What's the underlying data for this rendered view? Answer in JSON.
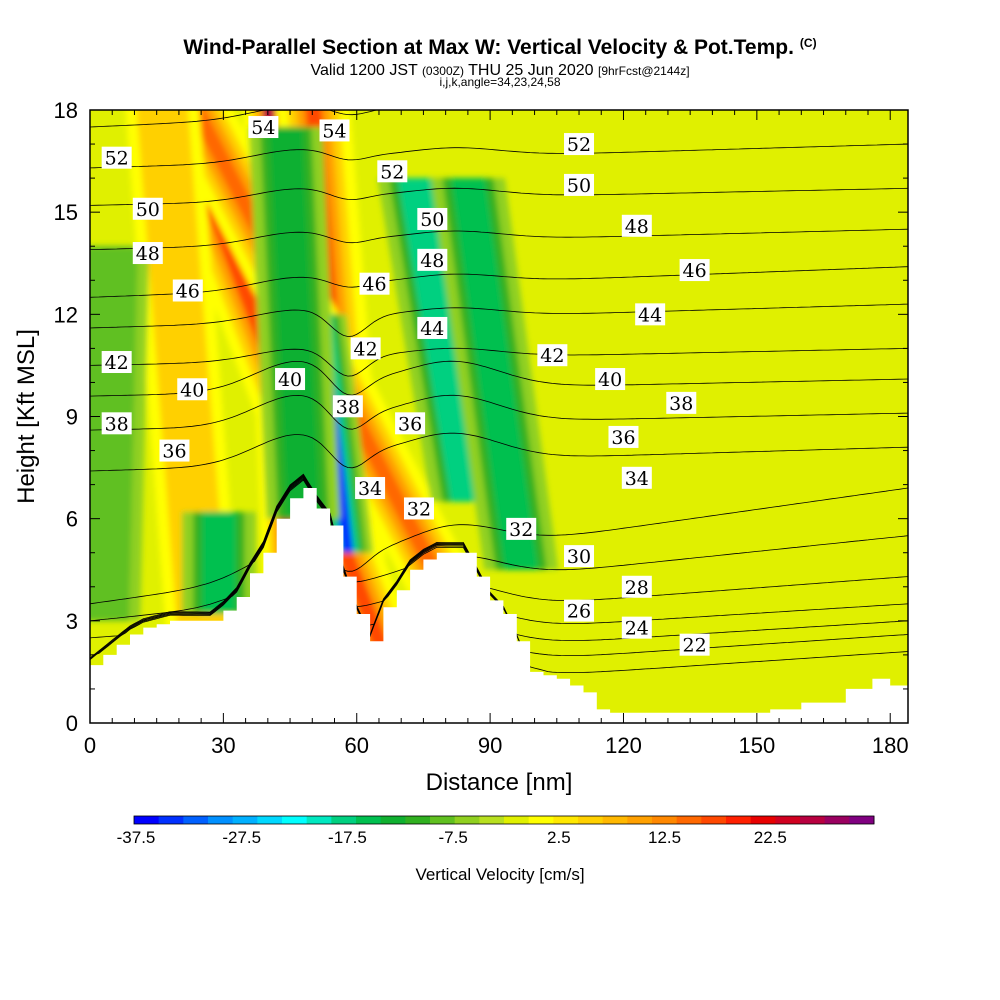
{
  "header": {
    "title": "Wind-Parallel Section at Max W: Vertical Velocity & Pot.Temp.",
    "title_mark": "(C)",
    "valid_prefix": "Valid 1200 JST",
    "valid_utc": "(0300Z)",
    "valid_date": "THU 25 Jun 2020",
    "forecast_info": "[9hrFcst@2144z]",
    "indices": "i,j,k,angle=34,23,24,58"
  },
  "chart_data": {
    "type": "heatmap",
    "xlabel": "Distance [nm]",
    "ylabel": "Height [Kft MSL]",
    "xlim": [
      0,
      184
    ],
    "ylim": [
      0,
      18
    ],
    "x_ticks": [
      0,
      30,
      60,
      90,
      120,
      150,
      180
    ],
    "y_ticks": [
      0,
      3,
      6,
      9,
      12,
      15,
      18
    ],
    "terrain": {
      "x": [
        0,
        3,
        6,
        9,
        12,
        15,
        18,
        21,
        24,
        27,
        30,
        33,
        36,
        39,
        42,
        45,
        48,
        51,
        54,
        57,
        60,
        63,
        66,
        69,
        72,
        75,
        78,
        81,
        84,
        87,
        90,
        93,
        96,
        99,
        102,
        105,
        108,
        111,
        114,
        117,
        120,
        135,
        150,
        153,
        160,
        170,
        176,
        180,
        184
      ],
      "height": [
        1.7,
        2.0,
        2.3,
        2.6,
        2.8,
        2.9,
        3.0,
        3.0,
        3.0,
        3.0,
        3.3,
        3.7,
        4.4,
        5.0,
        6.0,
        6.6,
        6.9,
        6.3,
        5.8,
        4.3,
        3.2,
        2.4,
        3.4,
        3.9,
        4.5,
        4.8,
        5.0,
        5.0,
        5.0,
        4.3,
        3.6,
        3.2,
        2.4,
        1.5,
        1.4,
        1.3,
        1.1,
        0.9,
        0.4,
        0.3,
        0.3,
        0.3,
        0.3,
        0.4,
        0.6,
        1.0,
        1.3,
        1.1,
        1.0
      ]
    },
    "updraft_bands": [
      {
        "x0": 46,
        "x1": 74,
        "xtop": 40,
        "w": 30
      },
      {
        "x0": 61,
        "x1": 74,
        "xtop": 50,
        "w": 20
      },
      {
        "x0": 72,
        "x1": 84,
        "xtop": 18,
        "w": 22
      },
      {
        "x0": 95,
        "x1": 98,
        "xtop": 22,
        "w": 18
      },
      {
        "x0": 27,
        "x1": 30,
        "xtop": 16,
        "w": 8
      }
    ],
    "downdraft_bands": [
      {
        "x0": 58,
        "x1": 52,
        "y0": 5.0,
        "y1": 12.0,
        "w": -35
      },
      {
        "x0": 85,
        "x1": 73,
        "y0": 6.5,
        "y1": 16.0,
        "w": -17
      },
      {
        "x0": 97,
        "x1": 85,
        "y0": 4.5,
        "y1": 16.0,
        "w": -14
      },
      {
        "x0": 48,
        "x1": 44,
        "y0": 6.0,
        "y1": 17.5,
        "w": -12
      },
      {
        "x0": 29,
        "x1": 29,
        "y0": 3.2,
        "y1": 6.2,
        "w": -14
      },
      {
        "x0": 3,
        "x1": 5,
        "y0": 3.0,
        "y1": 14.0,
        "w": -6
      }
    ],
    "theta_contours": [
      {
        "value": 22,
        "left_height": 0.5,
        "right_height": 2.1,
        "labels": [
          {
            "x": 136,
            "y": 2.3
          }
        ]
      },
      {
        "value": 24,
        "left_height": 1.0,
        "right_height": 2.6,
        "labels": [
          {
            "x": 123,
            "y": 2.8
          }
        ]
      },
      {
        "value": 26,
        "left_height": 1.5,
        "right_height": 3.0,
        "labels": [
          {
            "x": 110,
            "y": 3.3
          }
        ]
      },
      {
        "value": 28,
        "left_height": 2.0,
        "right_height": 3.5,
        "labels": [
          {
            "x": 123,
            "y": 4.0
          }
        ]
      },
      {
        "value": 30,
        "left_height": 2.5,
        "right_height": 4.3,
        "labels": [
          {
            "x": 110,
            "y": 4.9
          }
        ]
      },
      {
        "value": 32,
        "left_height": 3.0,
        "right_height": 5.5,
        "labels": [
          {
            "x": 74,
            "y": 6.3
          },
          {
            "x": 97,
            "y": 5.7
          }
        ]
      },
      {
        "value": 34,
        "left_height": 3.5,
        "right_height": 6.9,
        "labels": [
          {
            "x": 63,
            "y": 6.9
          },
          {
            "x": 123,
            "y": 7.2
          }
        ]
      },
      {
        "value": 36,
        "left_height": 7.4,
        "right_height": 8.1,
        "labels": [
          {
            "x": 19,
            "y": 8.0
          },
          {
            "x": 72,
            "y": 8.8
          },
          {
            "x": 120,
            "y": 8.4
          }
        ]
      },
      {
        "value": 38,
        "left_height": 8.6,
        "right_height": 9.1,
        "labels": [
          {
            "x": 6,
            "y": 8.8
          },
          {
            "x": 58,
            "y": 9.3
          },
          {
            "x": 133,
            "y": 9.4
          }
        ]
      },
      {
        "value": 40,
        "left_height": 9.6,
        "right_height": 10.1,
        "labels": [
          {
            "x": 23,
            "y": 9.8
          },
          {
            "x": 45,
            "y": 10.1
          },
          {
            "x": 117,
            "y": 10.1
          }
        ]
      },
      {
        "value": 42,
        "left_height": 10.5,
        "right_height": 11.0,
        "labels": [
          {
            "x": 6,
            "y": 10.6
          },
          {
            "x": 62,
            "y": 11.0
          },
          {
            "x": 104,
            "y": 10.8
          }
        ]
      },
      {
        "value": 44,
        "left_height": 11.6,
        "right_height": 12.3,
        "labels": [
          {
            "x": 77,
            "y": 11.6
          },
          {
            "x": 126,
            "y": 12.0
          }
        ]
      },
      {
        "value": 46,
        "left_height": 12.5,
        "right_height": 13.4,
        "labels": [
          {
            "x": 22,
            "y": 12.7
          },
          {
            "x": 64,
            "y": 12.9
          },
          {
            "x": 136,
            "y": 13.3
          }
        ]
      },
      {
        "value": 48,
        "left_height": 13.9,
        "right_height": 14.5,
        "labels": [
          {
            "x": 13,
            "y": 13.8
          },
          {
            "x": 77,
            "y": 13.6
          },
          {
            "x": 123,
            "y": 14.6
          }
        ]
      },
      {
        "value": 50,
        "left_height": 15.2,
        "right_height": 15.7,
        "labels": [
          {
            "x": 13,
            "y": 15.1
          },
          {
            "x": 77,
            "y": 14.8
          },
          {
            "x": 110,
            "y": 15.8
          }
        ]
      },
      {
        "value": 52,
        "left_height": 16.3,
        "right_height": 17.0,
        "labels": [
          {
            "x": 6,
            "y": 16.6
          },
          {
            "x": 68,
            "y": 16.2
          },
          {
            "x": 110,
            "y": 17.0
          }
        ]
      },
      {
        "value": 54,
        "left_height": 17.5,
        "right_height": 18.6,
        "labels": [
          {
            "x": 39,
            "y": 17.5
          },
          {
            "x": 55,
            "y": 17.4
          }
        ]
      }
    ],
    "colorbar": {
      "title": "Vertical Velocity [cm/s]",
      "tick_labels": [
        "-37.5",
        "-27.5",
        "-17.5",
        "-7.5",
        "2.5",
        "12.5",
        "22.5"
      ],
      "levels": [
        -37.5,
        32.5
      ],
      "step": 2.5,
      "colors": [
        "#0000ff",
        "#0030ff",
        "#0060ff",
        "#0090ff",
        "#00b0ff",
        "#00d8ff",
        "#00ffff",
        "#00e8c0",
        "#00d080",
        "#00c050",
        "#10b030",
        "#30b020",
        "#60c020",
        "#90d020",
        "#b8e020",
        "#e0f000",
        "#ffff00",
        "#ffe800",
        "#ffd000",
        "#ffb800",
        "#ffa000",
        "#ff8800",
        "#ff6800",
        "#ff4800",
        "#ff2000",
        "#e80000",
        "#d00020",
        "#b80040",
        "#9a0060",
        "#800080"
      ]
    }
  }
}
